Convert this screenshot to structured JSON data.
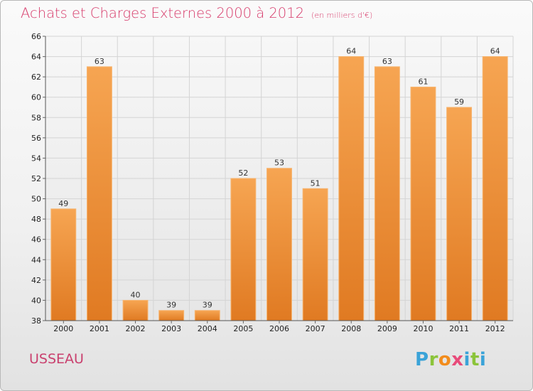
{
  "header": {
    "title": "Achats et Charges Externes 2000 à 2012",
    "subtitle": "(en milliers d'€)"
  },
  "footer": {
    "city": "USSEAU",
    "logo_text": "Proxiti",
    "logo_colors": [
      "#3aa3d8",
      "#8bc43a",
      "#f28c1c",
      "#e84b7a",
      "#3aa3d8",
      "#8bc43a"
    ]
  },
  "chart_data": {
    "type": "bar",
    "title": "Achats et Charges Externes 2000 à 2012",
    "subtitle": "(en milliers d'€)",
    "categories": [
      "2000",
      "2001",
      "2002",
      "2003",
      "2004",
      "2005",
      "2006",
      "2007",
      "2008",
      "2009",
      "2010",
      "2011",
      "2012"
    ],
    "values": [
      49,
      63,
      40,
      39,
      39,
      52,
      53,
      51,
      64,
      63,
      61,
      59,
      64
    ],
    "ylim": [
      38,
      66
    ],
    "yticks": [
      38,
      40,
      42,
      44,
      46,
      48,
      50,
      52,
      54,
      56,
      58,
      60,
      62,
      64,
      66
    ],
    "grid": true,
    "data_labels": true,
    "bar_color": "#f39a3e"
  }
}
